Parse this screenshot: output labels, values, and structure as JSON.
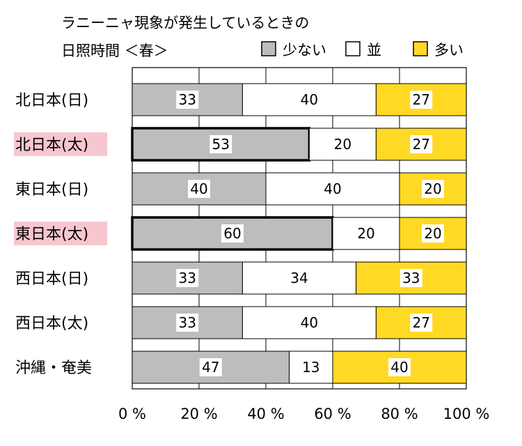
{
  "chart_data": {
    "type": "bar",
    "orientation": "horizontal",
    "stacked": "percent",
    "title": "ラニーニャ現象が発生しているときの",
    "subtitle": "日照時間 ＜春＞",
    "categories": [
      "北日本(日)",
      "北日本(太)",
      "東日本(日)",
      "東日本(太)",
      "西日本(日)",
      "西日本(太)",
      "沖縄・奄美"
    ],
    "highlighted_categories": [
      "北日本(太)",
      "東日本(太)"
    ],
    "emphasized_segments": [
      {
        "category": "北日本(太)",
        "series": "少ない"
      },
      {
        "category": "東日本(太)",
        "series": "少ない"
      }
    ],
    "series": [
      {
        "name": "少ない",
        "color": "#bdbdbd",
        "values": [
          33,
          53,
          40,
          60,
          33,
          33,
          47
        ]
      },
      {
        "name": "並",
        "color": "#ffffff",
        "values": [
          40,
          20,
          40,
          20,
          34,
          40,
          13
        ]
      },
      {
        "name": "多い",
        "color": "#ffd924",
        "values": [
          27,
          27,
          20,
          20,
          33,
          27,
          40
        ]
      }
    ],
    "xlim": [
      0,
      100
    ],
    "x_ticks": [
      "0 %",
      "20 %",
      "40 %",
      "60 %",
      "80 %",
      "100 %"
    ],
    "grid": true,
    "legend_position": "top-right",
    "highlight_color": "#f7c6cf"
  }
}
